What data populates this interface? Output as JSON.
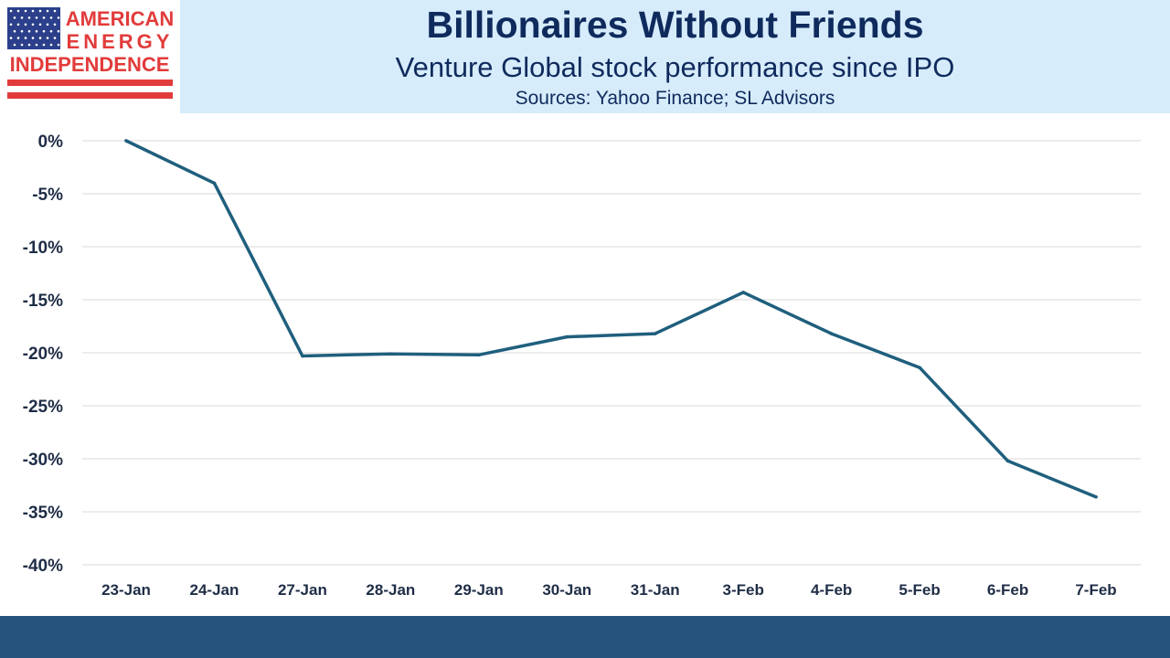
{
  "logo": {
    "line1": "AMERICAN",
    "line2": "ENERGY",
    "line3": "INDEPENDENCE",
    "flag_blue": "#2b3f8a",
    "flag_red": "#e23b3b"
  },
  "header": {
    "title": "Billionaires Without Friends",
    "subtitle": "Venture Global stock performance since IPO",
    "source": "Sources: Yahoo Finance; SL Advisors"
  },
  "colors": {
    "header_bg": "#d6ecfb",
    "title_text": "#0f2a5c",
    "line": "#1f5f7d",
    "footer": "#26527e",
    "grid": "#d9d9d9"
  },
  "chart_data": {
    "type": "line",
    "title": "",
    "xlabel": "",
    "ylabel": "",
    "categories": [
      "23-Jan",
      "24-Jan",
      "27-Jan",
      "28-Jan",
      "29-Jan",
      "30-Jan",
      "31-Jan",
      "3-Feb",
      "4-Feb",
      "5-Feb",
      "6-Feb",
      "7-Feb"
    ],
    "series": [
      {
        "values": [
          0,
          -4.0,
          -20.3,
          -20.1,
          -20.2,
          -18.5,
          -18.2,
          -14.3,
          -18.2,
          -21.4,
          -30.2,
          -33.6
        ]
      }
    ],
    "y_ticks": [
      0,
      -5,
      -10,
      -15,
      -20,
      -25,
      -30,
      -35,
      -40
    ],
    "y_tick_labels": [
      "0%",
      "-5%",
      "-10%",
      "-15%",
      "-20%",
      "-25%",
      "-30%",
      "-35%",
      "-40%"
    ],
    "ylim": [
      -40,
      0
    ],
    "grid": true,
    "legend": "none"
  }
}
